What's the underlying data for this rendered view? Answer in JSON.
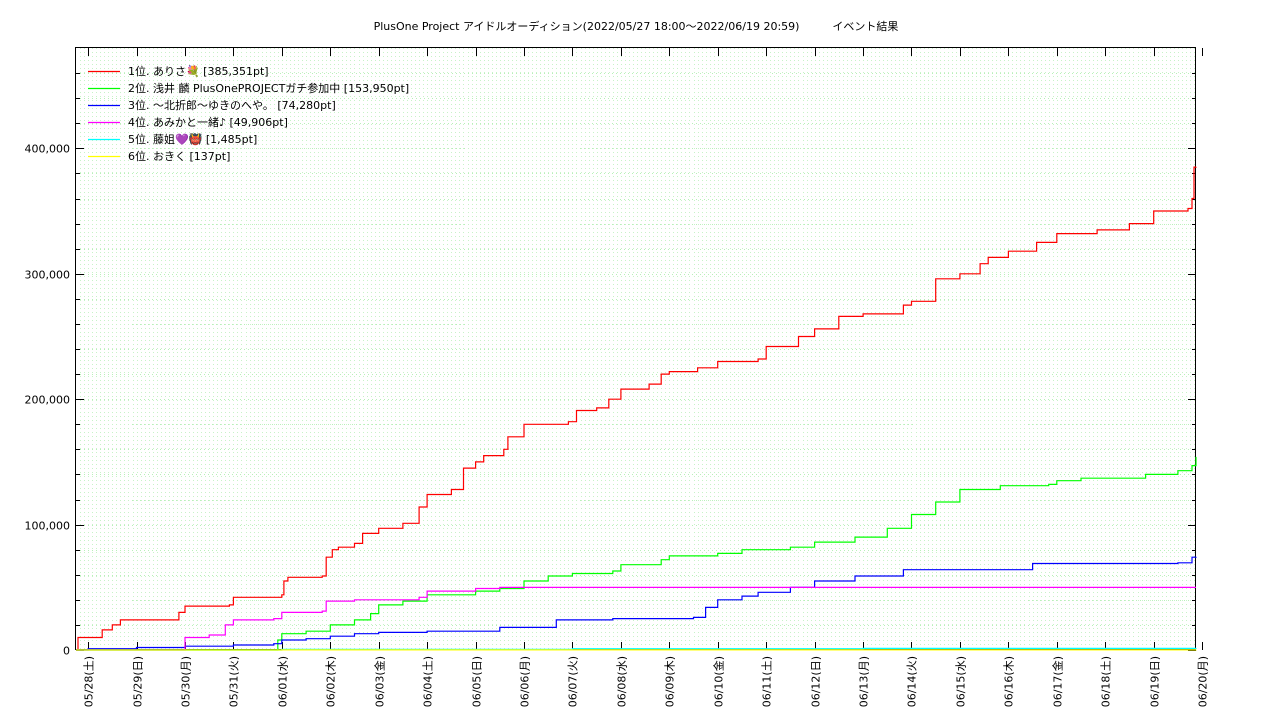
{
  "chart_data": {
    "type": "line",
    "title": "PlusOne Project アイドルオーディション(2022/05/27 18:00〜2022/06/19 20:59)　　　イベント結果",
    "xlabel": "",
    "ylabel": "",
    "x_range": [
      "2022-05-27 18:00",
      "2022-06-19 20:59"
    ],
    "ylim": [
      0,
      480000
    ],
    "y_ticks": [
      {
        "value": 0,
        "label": "0"
      },
      {
        "value": 100000,
        "label": "100,000"
      },
      {
        "value": 200000,
        "label": "200,000"
      },
      {
        "value": 300000,
        "label": "300,000"
      },
      {
        "value": 400000,
        "label": "400,000"
      }
    ],
    "x_ticks": [
      {
        "t": "2022-05-28",
        "label": "05/28(土)"
      },
      {
        "t": "2022-05-29",
        "label": "05/29(日)"
      },
      {
        "t": "2022-05-30",
        "label": "05/30(月)"
      },
      {
        "t": "2022-05-31",
        "label": "05/31(火)"
      },
      {
        "t": "2022-06-01",
        "label": "06/01(水)"
      },
      {
        "t": "2022-06-02",
        "label": "06/02(木)"
      },
      {
        "t": "2022-06-03",
        "label": "06/03(金)"
      },
      {
        "t": "2022-06-04",
        "label": "06/04(土)"
      },
      {
        "t": "2022-06-05",
        "label": "06/05(日)"
      },
      {
        "t": "2022-06-06",
        "label": "06/06(月)"
      },
      {
        "t": "2022-06-07",
        "label": "06/07(火)"
      },
      {
        "t": "2022-06-08",
        "label": "06/08(水)"
      },
      {
        "t": "2022-06-09",
        "label": "06/09(木)"
      },
      {
        "t": "2022-06-10",
        "label": "06/10(金)"
      },
      {
        "t": "2022-06-11",
        "label": "06/11(土)"
      },
      {
        "t": "2022-06-12",
        "label": "06/12(日)"
      },
      {
        "t": "2022-06-13",
        "label": "06/13(月)"
      },
      {
        "t": "2022-06-14",
        "label": "06/14(火)"
      },
      {
        "t": "2022-06-15",
        "label": "06/15(水)"
      },
      {
        "t": "2022-06-16",
        "label": "06/16(木)"
      },
      {
        "t": "2022-06-17",
        "label": "06/17(金)"
      },
      {
        "t": "2022-06-18",
        "label": "06/18(土)"
      },
      {
        "t": "2022-06-19",
        "label": "06/19(日)"
      },
      {
        "t": "2022-06-20",
        "label": "06/20(月)"
      }
    ],
    "grid": true,
    "legend_position": "top-left",
    "series": [
      {
        "name": "1位. ありさ💐 [385,351pt]",
        "color": "#ff0000",
        "points": [
          [
            "2022-05-27 18:00",
            0
          ],
          [
            "2022-05-27 19:00",
            10000
          ],
          [
            "2022-05-28 06:00",
            10000
          ],
          [
            "2022-05-28 07:00",
            16000
          ],
          [
            "2022-05-28 12:00",
            20000
          ],
          [
            "2022-05-28 16:00",
            24000
          ],
          [
            "2022-05-29 20:00",
            24000
          ],
          [
            "2022-05-29 21:00",
            30000
          ],
          [
            "2022-05-30 00:00",
            35000
          ],
          [
            "2022-05-30 22:00",
            36000
          ],
          [
            "2022-05-31 00:00",
            42000
          ],
          [
            "2022-06-01 00:00",
            44000
          ],
          [
            "2022-06-01 01:00",
            55000
          ],
          [
            "2022-06-01 03:00",
            58000
          ],
          [
            "2022-06-01 20:00",
            59000
          ],
          [
            "2022-06-01 22:00",
            74000
          ],
          [
            "2022-06-02 01:00",
            80000
          ],
          [
            "2022-06-02 04:00",
            82000
          ],
          [
            "2022-06-02 12:00",
            85000
          ],
          [
            "2022-06-02 16:00",
            93000
          ],
          [
            "2022-06-03 00:00",
            97000
          ],
          [
            "2022-06-03 12:00",
            101000
          ],
          [
            "2022-06-03 20:00",
            114000
          ],
          [
            "2022-06-04 00:00",
            124000
          ],
          [
            "2022-06-04 12:00",
            128000
          ],
          [
            "2022-06-04 18:00",
            145000
          ],
          [
            "2022-06-05 00:00",
            150000
          ],
          [
            "2022-06-05 04:00",
            155000
          ],
          [
            "2022-06-05 14:00",
            160000
          ],
          [
            "2022-06-05 16:00",
            170000
          ],
          [
            "2022-06-06 00:00",
            180000
          ],
          [
            "2022-06-06 22:00",
            182000
          ],
          [
            "2022-06-07 02:00",
            191000
          ],
          [
            "2022-06-07 12:00",
            193000
          ],
          [
            "2022-06-07 18:00",
            200000
          ],
          [
            "2022-06-08 00:00",
            208000
          ],
          [
            "2022-06-08 14:00",
            212000
          ],
          [
            "2022-06-08 20:00",
            220000
          ],
          [
            "2022-06-09 00:00",
            222000
          ],
          [
            "2022-06-09 14:00",
            225000
          ],
          [
            "2022-06-10 00:00",
            230000
          ],
          [
            "2022-06-10 20:00",
            232000
          ],
          [
            "2022-06-11 00:00",
            242000
          ],
          [
            "2022-06-11 16:00",
            250000
          ],
          [
            "2022-06-12 00:00",
            256000
          ],
          [
            "2022-06-12 12:00",
            266000
          ],
          [
            "2022-06-13 00:00",
            268000
          ],
          [
            "2022-06-13 20:00",
            275000
          ],
          [
            "2022-06-14 00:00",
            278000
          ],
          [
            "2022-06-14 12:00",
            296000
          ],
          [
            "2022-06-15 00:00",
            300000
          ],
          [
            "2022-06-15 10:00",
            308000
          ],
          [
            "2022-06-15 14:00",
            313000
          ],
          [
            "2022-06-16 00:00",
            318000
          ],
          [
            "2022-06-16 14:00",
            325000
          ],
          [
            "2022-06-17 00:00",
            332000
          ],
          [
            "2022-06-17 20:00",
            335000
          ],
          [
            "2022-06-18 12:00",
            340000
          ],
          [
            "2022-06-19 00:00",
            350000
          ],
          [
            "2022-06-19 17:00",
            352000
          ],
          [
            "2022-06-19 19:00",
            360000
          ],
          [
            "2022-06-19 20:00",
            385000
          ],
          [
            "2022-06-19 20:59",
            385351
          ]
        ]
      },
      {
        "name": "2位. 浅井 麟 PlusOnePROJECTガチ参加中 [153,950pt]",
        "color": "#00ff00",
        "points": [
          [
            "2022-05-27 18:00",
            0
          ],
          [
            "2022-05-31 14:00",
            0
          ],
          [
            "2022-05-31 22:00",
            8000
          ],
          [
            "2022-06-01 00:00",
            13000
          ],
          [
            "2022-06-01 12:00",
            15000
          ],
          [
            "2022-06-02 00:00",
            20000
          ],
          [
            "2022-06-02 12:00",
            24000
          ],
          [
            "2022-06-02 20:00",
            29000
          ],
          [
            "2022-06-03 00:00",
            36000
          ],
          [
            "2022-06-03 12:00",
            39000
          ],
          [
            "2022-06-04 00:00",
            44000
          ],
          [
            "2022-06-05 00:00",
            47000
          ],
          [
            "2022-06-05 12:00",
            49000
          ],
          [
            "2022-06-06 00:00",
            55000
          ],
          [
            "2022-06-06 12:00",
            59000
          ],
          [
            "2022-06-07 00:00",
            61000
          ],
          [
            "2022-06-07 20:00",
            63000
          ],
          [
            "2022-06-08 00:00",
            68000
          ],
          [
            "2022-06-08 20:00",
            72000
          ],
          [
            "2022-06-09 00:00",
            75000
          ],
          [
            "2022-06-10 00:00",
            77000
          ],
          [
            "2022-06-10 12:00",
            80000
          ],
          [
            "2022-06-11 12:00",
            82000
          ],
          [
            "2022-06-12 00:00",
            86000
          ],
          [
            "2022-06-12 20:00",
            90000
          ],
          [
            "2022-06-13 12:00",
            97000
          ],
          [
            "2022-06-14 00:00",
            108000
          ],
          [
            "2022-06-14 12:00",
            118000
          ],
          [
            "2022-06-15 00:00",
            128000
          ],
          [
            "2022-06-15 20:00",
            131000
          ],
          [
            "2022-06-16 20:00",
            132000
          ],
          [
            "2022-06-17 00:00",
            135000
          ],
          [
            "2022-06-17 12:00",
            137000
          ],
          [
            "2022-06-18 20:00",
            140000
          ],
          [
            "2022-06-19 12:00",
            143000
          ],
          [
            "2022-06-19 19:00",
            147000
          ],
          [
            "2022-06-19 20:59",
            153950
          ]
        ]
      },
      {
        "name": "3位. 〜北折郎〜ゆきのへや。 [74,280pt]",
        "color": "#0000ff",
        "points": [
          [
            "2022-05-27 18:00",
            0
          ],
          [
            "2022-05-28 00:00",
            1000
          ],
          [
            "2022-05-29 00:00",
            2000
          ],
          [
            "2022-05-30 00:00",
            3000
          ],
          [
            "2022-05-31 00:00",
            4000
          ],
          [
            "2022-05-31 20:00",
            5000
          ],
          [
            "2022-06-01 00:00",
            8000
          ],
          [
            "2022-06-01 12:00",
            9000
          ],
          [
            "2022-06-02 00:00",
            11000
          ],
          [
            "2022-06-02 12:00",
            13000
          ],
          [
            "2022-06-03 00:00",
            14000
          ],
          [
            "2022-06-04 00:00",
            15000
          ],
          [
            "2022-06-05 12:00",
            18000
          ],
          [
            "2022-06-06 16:00",
            24000
          ],
          [
            "2022-06-07 20:00",
            25000
          ],
          [
            "2022-06-09 12:00",
            26000
          ],
          [
            "2022-06-09 18:00",
            34000
          ],
          [
            "2022-06-10 00:00",
            40000
          ],
          [
            "2022-06-10 12:00",
            43000
          ],
          [
            "2022-06-10 20:00",
            46000
          ],
          [
            "2022-06-11 12:00",
            50000
          ],
          [
            "2022-06-12 00:00",
            55000
          ],
          [
            "2022-06-12 20:00",
            59000
          ],
          [
            "2022-06-13 20:00",
            64000
          ],
          [
            "2022-06-16 12:00",
            69000
          ],
          [
            "2022-06-19 12:00",
            69500
          ],
          [
            "2022-06-19 19:00",
            74000
          ],
          [
            "2022-06-19 20:59",
            74280
          ]
        ]
      },
      {
        "name": "4位. あみかと一緒♪ [49,906pt]",
        "color": "#ff00ff",
        "points": [
          [
            "2022-05-27 18:00",
            0
          ],
          [
            "2022-05-29 22:00",
            0
          ],
          [
            "2022-05-30 00:00",
            10000
          ],
          [
            "2022-05-30 12:00",
            12000
          ],
          [
            "2022-05-30 20:00",
            20000
          ],
          [
            "2022-05-31 00:00",
            24000
          ],
          [
            "2022-05-31 20:00",
            25000
          ],
          [
            "2022-06-01 00:00",
            30000
          ],
          [
            "2022-06-01 20:00",
            31000
          ],
          [
            "2022-06-01 22:00",
            39000
          ],
          [
            "2022-06-02 12:00",
            40000
          ],
          [
            "2022-06-03 20:00",
            42000
          ],
          [
            "2022-06-04 00:00",
            47000
          ],
          [
            "2022-06-05 00:00",
            49000
          ],
          [
            "2022-06-05 12:00",
            49906
          ],
          [
            "2022-06-19 20:59",
            49906
          ]
        ]
      },
      {
        "name": "5位. 藤姐💜👹 [1,485pt]",
        "color": "#00ffff",
        "points": [
          [
            "2022-05-27 18:00",
            0
          ],
          [
            "2022-06-01 00:00",
            500
          ],
          [
            "2022-06-07 00:00",
            1000
          ],
          [
            "2022-06-13 00:00",
            1300
          ],
          [
            "2022-06-19 20:59",
            1485
          ]
        ]
      },
      {
        "name": "6位. おきく [137pt]",
        "color": "#ffff00",
        "points": [
          [
            "2022-05-27 18:00",
            0
          ],
          [
            "2022-06-01 00:00",
            50
          ],
          [
            "2022-06-19 20:59",
            137
          ]
        ]
      }
    ]
  }
}
